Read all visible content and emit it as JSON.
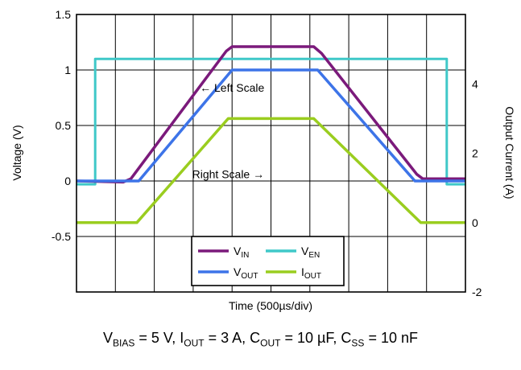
{
  "chart_data": {
    "type": "line",
    "xlabel": "Time (500µs/div)",
    "x_divisions": 10,
    "ylabel_left": "Voltage (V)",
    "ylabel_right": "Output Current (A)",
    "ylim_left": [
      -1.0,
      1.5
    ],
    "yticks_left": [
      "1.5",
      "1",
      "0.5",
      "0",
      "-0.5"
    ],
    "yticks_left_values": [
      1.5,
      1,
      0.5,
      0,
      -0.5
    ],
    "ylim_right": [
      -2,
      6
    ],
    "yticks_right": [
      "4",
      "2",
      "0",
      "-2"
    ],
    "yticks_right_values": [
      4,
      2,
      0,
      -2
    ],
    "grid": true,
    "annotations": [
      {
        "text": "← Left Scale",
        "x": 4.0,
        "y": 0.84
      },
      {
        "text": "Right Scale →",
        "x": 3.9,
        "y": 0.06
      }
    ],
    "legend": [
      {
        "label": "V",
        "sub": "IN",
        "color": "#7b1a7b"
      },
      {
        "label": "V",
        "sub": "EN",
        "color": "#3fc8c8"
      },
      {
        "label": "V",
        "sub": "OUT",
        "color": "#3d74e8"
      },
      {
        "label": "I",
        "sub": "OUT",
        "color": "#9acd1f"
      }
    ],
    "legend_position": "bottom-center",
    "series": [
      {
        "name": "VIN",
        "axis": "left",
        "color": "#7b1a7b",
        "x": [
          0,
          1.2,
          1.4,
          3.85,
          4.0,
          6.1,
          6.3,
          8.75,
          8.9,
          10
        ],
        "y": [
          0.0,
          -0.01,
          0.02,
          1.17,
          1.21,
          1.21,
          1.15,
          0.06,
          0.02,
          0.02
        ]
      },
      {
        "name": "VOUT",
        "axis": "left",
        "color": "#3d74e8",
        "x": [
          0,
          1.5,
          1.6,
          4.0,
          6.2,
          8.7,
          8.8,
          10
        ],
        "y": [
          0.0,
          0.0,
          0.0,
          1.0,
          1.0,
          0.0,
          0.0,
          0.0
        ]
      },
      {
        "name": "VEN",
        "axis": "left",
        "color": "#3fc8c8",
        "x": [
          0,
          0.48,
          0.48,
          9.52,
          9.52,
          10
        ],
        "y": [
          -0.03,
          -0.03,
          1.1,
          1.1,
          -0.03,
          -0.03
        ]
      },
      {
        "name": "IOUT",
        "axis": "right",
        "color": "#9acd1f",
        "x": [
          0,
          1.55,
          3.9,
          6.1,
          8.85,
          10
        ],
        "y": [
          0,
          0,
          3,
          3,
          0,
          0
        ]
      }
    ]
  },
  "caption": {
    "parts": [
      {
        "t": "V"
      },
      {
        "s": "BIAS"
      },
      {
        "t": " = 5 V, I"
      },
      {
        "s": "OUT"
      },
      {
        "t": " = 3 A, C"
      },
      {
        "s": "OUT"
      },
      {
        "t": " = 10 µF, C"
      },
      {
        "s": "SS"
      },
      {
        "t": " = 10 nF"
      }
    ]
  }
}
